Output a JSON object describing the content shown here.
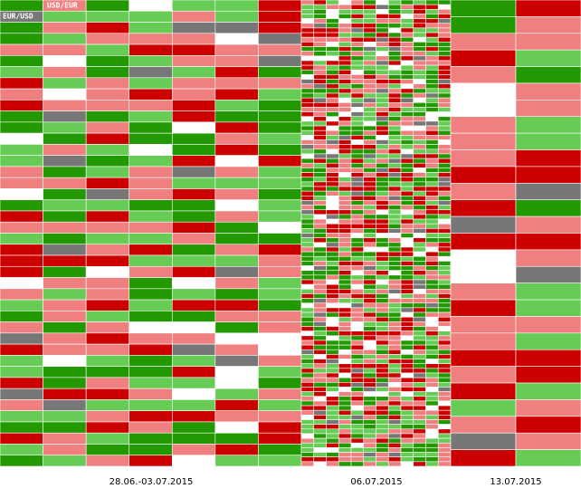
{
  "header": {
    "labels": [
      "EUR/USD",
      "USD/EUR"
    ]
  },
  "footer": {
    "periods": [
      "28.06.-03.07.2015",
      "06.07.2015",
      "13.07.2015"
    ]
  }
}
